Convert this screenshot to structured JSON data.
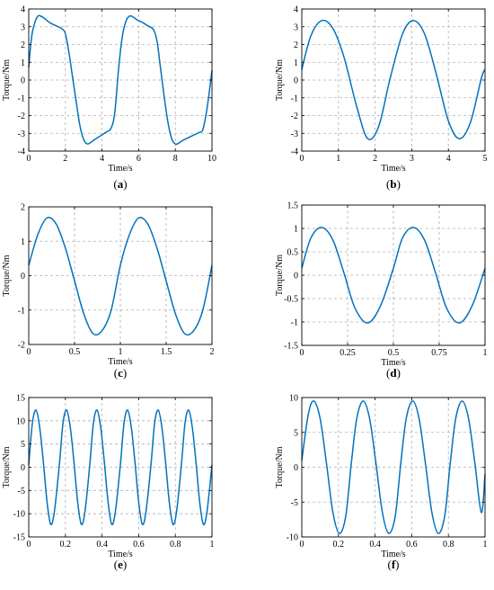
{
  "style": {
    "line_color": "#0072BD",
    "grid_color": "#b0b0b0",
    "axis_color": "#000000"
  },
  "chart_data": [
    {
      "id": "a",
      "type": "line",
      "caption": "(a)",
      "caption_letter": "a",
      "xlabel": "Time/s",
      "ylabel": "Torque/Nm",
      "xlim": [
        0,
        10
      ],
      "ylim": [
        -4,
        4
      ],
      "xticks": [
        0,
        2,
        4,
        6,
        8,
        10
      ],
      "yticks": [
        -4,
        -3,
        -2,
        -1,
        0,
        1,
        2,
        3,
        4
      ],
      "xtick_labels": [
        "0",
        "2",
        "4",
        "6",
        "8",
        "10"
      ],
      "ytick_labels": [
        "-4",
        "-3",
        "-2",
        "-1",
        "0",
        "1",
        "2",
        "3",
        "4"
      ],
      "grid": true,
      "series": [
        {
          "x": [
            0,
            0.1,
            0.2,
            0.35,
            0.5,
            0.6,
            0.8,
            1.0,
            1.2,
            1.5,
            1.8,
            2.0,
            2.2,
            2.4,
            2.6,
            2.8,
            3.0,
            3.2,
            3.4,
            3.6,
            3.9,
            4.2,
            4.5,
            4.7,
            4.9,
            5.1,
            5.3,
            5.5,
            5.7,
            5.9,
            6.2,
            6.5,
            6.8,
            7.0,
            7.2,
            7.4,
            7.6,
            7.8,
            8.0,
            8.2,
            8.4,
            8.7,
            9.0,
            9.3,
            9.5,
            9.7,
            9.85,
            10.0
          ],
          "y": [
            0.7,
            1.9,
            2.7,
            3.3,
            3.6,
            3.62,
            3.52,
            3.35,
            3.2,
            3.05,
            2.9,
            2.6,
            1.5,
            0.1,
            -1.3,
            -2.6,
            -3.35,
            -3.6,
            -3.5,
            -3.35,
            -3.15,
            -2.95,
            -2.7,
            -1.8,
            0.6,
            2.4,
            3.3,
            3.6,
            3.55,
            3.4,
            3.25,
            3.05,
            2.85,
            2.2,
            0.6,
            -1.0,
            -2.4,
            -3.3,
            -3.6,
            -3.55,
            -3.4,
            -3.25,
            -3.1,
            -2.95,
            -2.8,
            -1.8,
            -0.7,
            0.55
          ]
        }
      ]
    },
    {
      "id": "b",
      "type": "line",
      "caption": "(b)",
      "caption_letter": "b",
      "xlabel": "Time/s",
      "ylabel": "Torque/Nm",
      "xlim": [
        0,
        5
      ],
      "ylim": [
        -4,
        4
      ],
      "xticks": [
        0,
        1,
        2,
        3,
        4,
        5
      ],
      "yticks": [
        -4,
        -3,
        -2,
        -1,
        0,
        1,
        2,
        3,
        4
      ],
      "xtick_labels": [
        "0",
        "1",
        "2",
        "3",
        "4",
        "5"
      ],
      "ytick_labels": [
        "-4",
        "-3",
        "-2",
        "-1",
        "0",
        "1",
        "2",
        "3",
        "4"
      ],
      "grid": true,
      "series": [
        {
          "x": [
            0,
            0.25,
            0.55,
            0.85,
            1.15,
            1.5,
            1.8,
            2.1,
            2.4,
            2.75,
            3.05,
            3.35,
            3.65,
            4.0,
            4.3,
            4.6,
            4.9,
            5.0
          ],
          "y": [
            0.6,
            2.5,
            3.35,
            2.9,
            1.3,
            -1.5,
            -3.3,
            -2.6,
            0.0,
            2.6,
            3.35,
            2.6,
            0.5,
            -2.3,
            -3.3,
            -2.4,
            0.1,
            0.6
          ]
        }
      ]
    },
    {
      "id": "c",
      "type": "line",
      "caption": "(c)",
      "caption_letter": "c",
      "xlabel": "Time/s",
      "ylabel": "Torque/Nm",
      "xlim": [
        0,
        2
      ],
      "ylim": [
        -2,
        2
      ],
      "xticks": [
        0,
        0.5,
        1,
        1.5,
        2
      ],
      "yticks": [
        -2,
        -1,
        0,
        1,
        2
      ],
      "xtick_labels": [
        "0",
        "0.5",
        "1",
        "1.5",
        "2"
      ],
      "ytick_labels": [
        "-2",
        "-1",
        "0",
        "1",
        "2"
      ],
      "grid": true,
      "series": [
        {
          "x": [
            0,
            0.1,
            0.2,
            0.3,
            0.4,
            0.5,
            0.6,
            0.7,
            0.8,
            0.9,
            1.0,
            1.1,
            1.2,
            1.3,
            1.4,
            1.5,
            1.6,
            1.7,
            1.8,
            1.9,
            2.0
          ],
          "y": [
            0.3,
            1.2,
            1.68,
            1.5,
            0.8,
            -0.15,
            -1.1,
            -1.68,
            -1.6,
            -1.0,
            0.3,
            1.2,
            1.68,
            1.5,
            0.8,
            -0.15,
            -1.1,
            -1.68,
            -1.6,
            -1.0,
            0.3
          ]
        }
      ]
    },
    {
      "id": "d",
      "type": "line",
      "caption": "(d)",
      "caption_letter": "d",
      "xlabel": "Time/s",
      "ylabel": "Torque/Nm",
      "xlim": [
        0,
        1
      ],
      "ylim": [
        -1.5,
        1.5
      ],
      "xticks": [
        0,
        0.25,
        0.5,
        0.75,
        1
      ],
      "yticks": [
        -1.5,
        -1,
        -0.5,
        0,
        0.5,
        1,
        1.5
      ],
      "xtick_labels": [
        "0",
        "0.25",
        "0.5",
        "0.75",
        "1"
      ],
      "ytick_labels": [
        "-1.5",
        "-1",
        "-0.5",
        "0",
        "0.5",
        "1",
        "1.5"
      ],
      "grid": true,
      "series": [
        {
          "x": [
            0,
            0.05,
            0.11,
            0.17,
            0.23,
            0.29,
            0.36,
            0.43,
            0.5,
            0.55,
            0.61,
            0.67,
            0.73,
            0.79,
            0.86,
            0.93,
            1.0
          ],
          "y": [
            0.15,
            0.8,
            1.02,
            0.75,
            0.05,
            -0.7,
            -1.02,
            -0.65,
            0.15,
            0.8,
            1.02,
            0.75,
            0.05,
            -0.7,
            -1.02,
            -0.65,
            0.15
          ]
        }
      ]
    },
    {
      "id": "e",
      "type": "line",
      "caption": "(e)",
      "caption_letter": "e",
      "xlabel": "Time/s",
      "ylabel": "Torque/Nm",
      "xlim": [
        0,
        1
      ],
      "ylim": [
        -15,
        15
      ],
      "xticks": [
        0,
        0.2,
        0.4,
        0.6,
        0.8,
        1
      ],
      "yticks": [
        -15,
        -10,
        -5,
        0,
        5,
        10,
        15
      ],
      "xtick_labels": [
        "0",
        "0.2",
        "0.4",
        "0.6",
        "0.8",
        "1"
      ],
      "ytick_labels": [
        "-15",
        "-10",
        "-5",
        "0",
        "5",
        "10",
        "15"
      ],
      "grid": true,
      "series": [
        {
          "x": [
            0,
            0.02,
            0.04,
            0.06,
            0.08,
            0.1,
            0.12,
            0.14,
            0.167,
            0.187,
            0.207,
            0.227,
            0.247,
            0.267,
            0.287,
            0.307,
            0.333,
            0.353,
            0.373,
            0.393,
            0.413,
            0.433,
            0.453,
            0.473,
            0.5,
            0.52,
            0.54,
            0.56,
            0.58,
            0.6,
            0.62,
            0.64,
            0.667,
            0.687,
            0.707,
            0.727,
            0.747,
            0.767,
            0.787,
            0.807,
            0.833,
            0.853,
            0.873,
            0.893,
            0.913,
            0.933,
            0.953,
            0.973,
            1.0
          ],
          "y": [
            0.5,
            9.5,
            12.3,
            8.5,
            1.0,
            -7.5,
            -12.3,
            -9.5,
            0.5,
            9.5,
            12.3,
            8.5,
            1.0,
            -7.5,
            -12.3,
            -9.5,
            0.5,
            9.5,
            12.3,
            8.5,
            1.0,
            -7.5,
            -12.3,
            -9.5,
            0.5,
            9.5,
            12.3,
            8.5,
            1.0,
            -7.5,
            -12.3,
            -9.5,
            0.5,
            9.5,
            12.3,
            8.5,
            1.0,
            -7.5,
            -12.3,
            -9.5,
            0.5,
            9.5,
            12.3,
            8.5,
            1.0,
            -7.5,
            -12.3,
            -9.5,
            0.5
          ]
        }
      ]
    },
    {
      "id": "f",
      "type": "line",
      "caption": "(f)",
      "caption_letter": "f",
      "xlabel": "Time/s",
      "ylabel": "Torque/Nm",
      "xlim": [
        0,
        1
      ],
      "ylim": [
        -10,
        10
      ],
      "xticks": [
        0,
        0.2,
        0.4,
        0.6,
        0.8,
        1
      ],
      "yticks": [
        -10,
        -5,
        0,
        5,
        10
      ],
      "xtick_labels": [
        "0",
        "0.2",
        "0.4",
        "0.6",
        "0.8",
        "1"
      ],
      "ytick_labels": [
        "-10",
        "-5",
        "0",
        "5",
        "10"
      ],
      "grid": true,
      "series": [
        {
          "x": [
            0,
            0.035,
            0.065,
            0.1,
            0.135,
            0.17,
            0.205,
            0.24,
            0.27,
            0.3,
            0.335,
            0.37,
            0.405,
            0.44,
            0.475,
            0.51,
            0.54,
            0.57,
            0.605,
            0.64,
            0.675,
            0.71,
            0.745,
            0.78,
            0.81,
            0.84,
            0.875,
            0.91,
            0.945,
            0.98,
            1.0
          ],
          "y": [
            1.0,
            7.5,
            9.5,
            7.0,
            0.5,
            -6.5,
            -9.5,
            -7.0,
            0.5,
            7.0,
            9.5,
            7.0,
            0.5,
            -6.5,
            -9.5,
            -7.0,
            0.5,
            7.0,
            9.5,
            7.0,
            0.5,
            -6.5,
            -9.5,
            -7.0,
            0.5,
            7.0,
            9.5,
            7.0,
            0.5,
            -6.5,
            -1.0
          ]
        }
      ]
    }
  ]
}
